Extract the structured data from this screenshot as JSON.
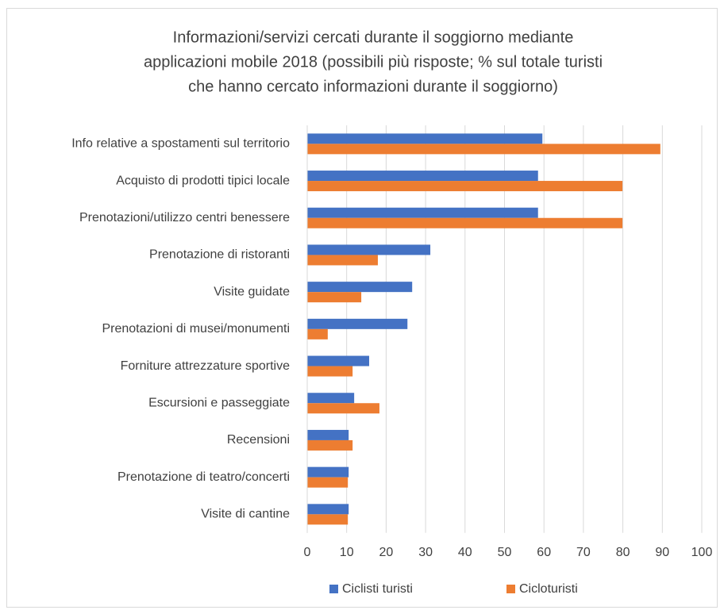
{
  "chart_data": {
    "type": "barh",
    "title": [
      "Informazioni/servizi  cercati durante il soggiorno mediante",
      "applicazioni mobile 2018 (possibili più risposte; % sul totale  turisti",
      "che hanno cercato  informazioni durante il soggiorno)"
    ],
    "categories": [
      "Info relative a spostamenti sul territorio",
      "Acquisto di prodotti tipici locale",
      "Prenotazioni/utilizzo centri benessere",
      "Prenotazione di ristoranti",
      "Visite guidate",
      "Prenotazioni di musei/monumenti",
      "Forniture attrezzature sportive",
      "Escursioni e passeggiate",
      "Recensioni",
      "Prenotazione di teatro/concerti",
      "Visite di cantine"
    ],
    "series": [
      {
        "name": "Ciclisti turisti",
        "color": "#4472c4",
        "values": [
          59.6,
          58.5,
          58.5,
          31.2,
          26.6,
          25.4,
          15.7,
          11.9,
          10.5,
          10.5,
          10.5
        ]
      },
      {
        "name": "Cicloturisti",
        "color": "#ed7d31",
        "values": [
          89.5,
          79.9,
          79.9,
          17.9,
          13.7,
          5.2,
          11.5,
          18.3,
          11.5,
          10.3,
          10.3
        ]
      }
    ],
    "xlim": [
      0,
      100
    ],
    "xticks": [
      0,
      10,
      20,
      30,
      40,
      50,
      60,
      70,
      80,
      90,
      100
    ],
    "grid": true,
    "legend": "bottom"
  }
}
